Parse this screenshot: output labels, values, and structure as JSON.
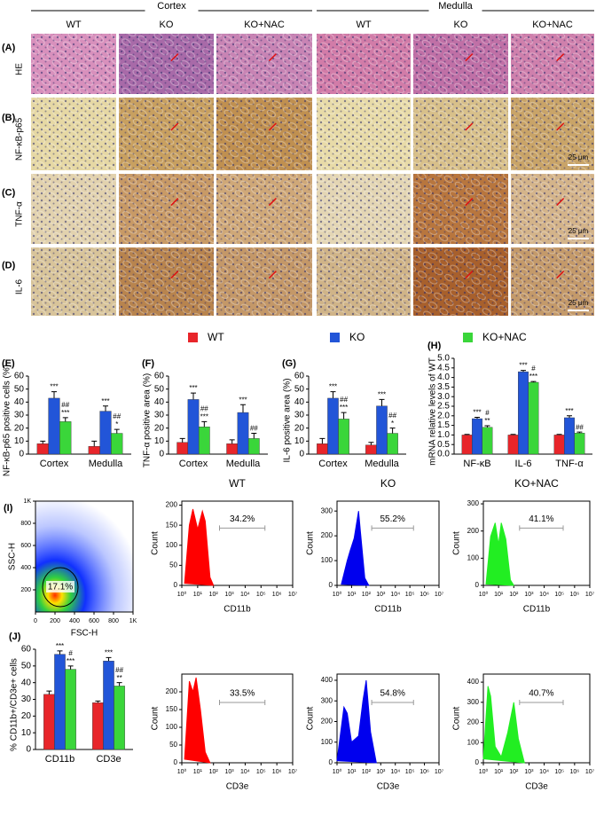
{
  "figure": {
    "groups": [
      "Cortex",
      "Medulla"
    ],
    "columns": [
      "WT",
      "KO",
      "KO+NAC"
    ],
    "rows": [
      {
        "letter": "(A)",
        "stain": "HE"
      },
      {
        "letter": "(B)",
        "stain": "NF-κB-p65"
      },
      {
        "letter": "(C)",
        "stain": "TNF-α"
      },
      {
        "letter": "(D)",
        "stain": "IL-6"
      }
    ],
    "scale_bar": "25 μm"
  },
  "chart_data": [
    {
      "type": "bar",
      "letter": "(E)",
      "ylabel": "NF-κB-p65 positive cells (%)",
      "categories": [
        "Cortex",
        "Medulla"
      ],
      "ylim": [
        0,
        60
      ],
      "yticks": [
        0,
        10,
        20,
        30,
        40,
        50,
        60
      ],
      "series": [
        {
          "name": "WT",
          "color": "#e8252a",
          "values": [
            8,
            6
          ],
          "errors": [
            2,
            4
          ]
        },
        {
          "name": "KO",
          "color": "#2255d8",
          "values": [
            43,
            33
          ],
          "errors": [
            5,
            4
          ],
          "sig": [
            [
              "***"
            ],
            [
              "***"
            ]
          ]
        },
        {
          "name": "KO+NAC",
          "color": "#3ad63a",
          "values": [
            25,
            16
          ],
          "errors": [
            3,
            3
          ],
          "sig": [
            [
              "##",
              "***"
            ],
            [
              "##",
              "*"
            ]
          ]
        }
      ]
    },
    {
      "type": "bar",
      "letter": "(F)",
      "ylabel": "TNF-α positive area (%)",
      "categories": [
        "Cortex",
        "Medulla"
      ],
      "ylim": [
        0,
        60
      ],
      "yticks": [
        0,
        10,
        20,
        30,
        40,
        50,
        60
      ],
      "series": [
        {
          "name": "WT",
          "color": "#e8252a",
          "values": [
            9,
            8
          ],
          "errors": [
            3,
            3
          ]
        },
        {
          "name": "KO",
          "color": "#2255d8",
          "values": [
            42,
            32
          ],
          "errors": [
            5,
            6
          ],
          "sig": [
            [
              "***"
            ],
            [
              "***"
            ]
          ]
        },
        {
          "name": "KO+NAC",
          "color": "#3ad63a",
          "values": [
            21,
            12
          ],
          "errors": [
            4,
            4
          ],
          "sig": [
            [
              "##",
              "***"
            ],
            [
              "##"
            ]
          ]
        }
      ]
    },
    {
      "type": "bar",
      "letter": "(G)",
      "ylabel": "IL-6 positive area (%)",
      "categories": [
        "Cortex",
        "Medulla"
      ],
      "ylim": [
        0,
        60
      ],
      "yticks": [
        0,
        10,
        20,
        30,
        40,
        50,
        60
      ],
      "series": [
        {
          "name": "WT",
          "color": "#e8252a",
          "values": [
            8,
            7
          ],
          "errors": [
            4,
            2
          ]
        },
        {
          "name": "KO",
          "color": "#2255d8",
          "values": [
            43,
            37
          ],
          "errors": [
            5,
            5
          ],
          "sig": [
            [
              "***"
            ],
            [
              "***"
            ]
          ]
        },
        {
          "name": "KO+NAC",
          "color": "#3ad63a",
          "values": [
            27,
            16
          ],
          "errors": [
            5,
            4
          ],
          "sig": [
            [
              "##",
              "***"
            ],
            [
              "##",
              "*"
            ]
          ]
        }
      ]
    },
    {
      "type": "bar",
      "letter": "(H)",
      "ylabel": "mRNA relative levels of WT",
      "categories": [
        "NF-κB",
        "IL-6",
        "TNF-α"
      ],
      "ylim": [
        0,
        5
      ],
      "yticks": [
        {
          "value": 0,
          "label": "0.0"
        },
        0.5,
        {
          "value": 1,
          "label": "1.0"
        },
        1.5,
        {
          "value": 2,
          "label": "2.0"
        },
        2.5,
        {
          "value": 3,
          "label": "3.0"
        },
        3.5,
        {
          "value": 4,
          "label": "4.0"
        },
        4.5,
        {
          "value": 5,
          "label": "5.0"
        }
      ],
      "series": [
        {
          "name": "WT",
          "color": "#e8252a",
          "values": [
            1,
            1,
            1
          ],
          "errors": [
            0.03,
            0.03,
            0.03
          ]
        },
        {
          "name": "KO",
          "color": "#2255d8",
          "values": [
            1.85,
            4.3,
            1.9
          ],
          "errors": [
            0.07,
            0.07,
            0.1
          ],
          "sig": [
            [
              "***"
            ],
            [
              "***"
            ],
            [
              "***"
            ]
          ]
        },
        {
          "name": "KO+NAC",
          "color": "#3ad63a",
          "values": [
            1.4,
            3.75,
            1.1
          ],
          "errors": [
            0.08,
            0.04,
            0.05
          ],
          "sig": [
            [
              "#",
              "**"
            ],
            [
              "#",
              "***"
            ],
            [
              "##"
            ]
          ]
        }
      ]
    },
    {
      "type": "density",
      "letter": "(I)",
      "xlabel": "FSC-H",
      "ylabel": "SSC-H",
      "label": "17.1%",
      "xlim": [
        0,
        1000
      ],
      "xticks": [
        0,
        200,
        400,
        600,
        800,
        {
          "value": 1000,
          "label": "1K"
        }
      ],
      "ylim": [
        0,
        1000
      ],
      "yticks": [
        200,
        400,
        600,
        800,
        {
          "value": 1000,
          "label": "1K"
        }
      ]
    },
    {
      "type": "area",
      "title": "WT",
      "ylabel": "Count",
      "xlabel": "CD11b",
      "label": "34.2%",
      "color": "#ff0000",
      "xlog": true,
      "xlim": [
        1,
        10000000
      ],
      "xticks": [
        {
          "value": 1,
          "label": "10⁰"
        },
        {
          "value": 10,
          "label": "10¹"
        },
        {
          "value": 100,
          "label": "10²"
        },
        {
          "value": 1000,
          "label": "10³"
        },
        {
          "value": 10000,
          "label": "10⁴"
        },
        {
          "value": 100000,
          "label": "10⁵"
        },
        {
          "value": 1000000,
          "label": "10⁶"
        },
        {
          "value": 10000000,
          "label": "10⁷"
        }
      ],
      "ylim": [
        0,
        210
      ],
      "yticks": [
        0,
        50,
        100,
        150,
        200
      ],
      "x": [
        1.5,
        3,
        5,
        10,
        20,
        30,
        60,
        100
      ],
      "values": [
        5,
        150,
        190,
        140,
        185,
        160,
        20,
        0
      ]
    },
    {
      "type": "area",
      "title": "KO",
      "ylabel": "Count",
      "xlabel": "CD11b",
      "label": "55.2%",
      "color": "#0000ee",
      "xlog": true,
      "xlim": [
        1,
        10000000
      ],
      "xticks": [
        {
          "value": 1,
          "label": "10⁰"
        },
        {
          "value": 10,
          "label": "10¹"
        },
        {
          "value": 100,
          "label": "10²"
        },
        {
          "value": 1000,
          "label": "10³"
        },
        {
          "value": 10000,
          "label": "10⁴"
        },
        {
          "value": 100000,
          "label": "10⁵"
        },
        {
          "value": 1000000,
          "label": "10⁶"
        },
        {
          "value": 10000000,
          "label": "10⁷"
        }
      ],
      "ylim": [
        0,
        340
      ],
      "yticks": [
        0,
        100,
        200,
        300
      ],
      "x": [
        2,
        5,
        8,
        15,
        30,
        40,
        80,
        150
      ],
      "values": [
        5,
        100,
        140,
        190,
        300,
        220,
        30,
        0
      ]
    },
    {
      "type": "area",
      "title": "KO+NAC",
      "ylabel": "Count",
      "xlabel": "CD11b",
      "label": "41.1%",
      "color": "#22ee22",
      "xlog": true,
      "xlim": [
        1,
        10000000
      ],
      "xticks": [
        {
          "value": 1,
          "label": "10⁰"
        },
        {
          "value": 10,
          "label": "10¹"
        },
        {
          "value": 100,
          "label": "10²"
        },
        {
          "value": 1000,
          "label": "10³"
        },
        {
          "value": 10000,
          "label": "10⁴"
        },
        {
          "value": 100000,
          "label": "10⁵"
        },
        {
          "value": 1000000,
          "label": "10⁶"
        },
        {
          "value": 10000000,
          "label": "10⁷"
        }
      ],
      "ylim": [
        0,
        310
      ],
      "yticks": [
        0,
        100,
        200,
        300
      ],
      "x": [
        1.5,
        3,
        6,
        10,
        15,
        30,
        60,
        100
      ],
      "values": [
        5,
        180,
        230,
        150,
        230,
        170,
        20,
        0
      ]
    },
    {
      "type": "bar",
      "letter": "(J)",
      "ylabel": "% CD11b+/CD3e+ cells",
      "categories": [
        "CD11b",
        "CD3e"
      ],
      "ylim": [
        0,
        60
      ],
      "yticks": [
        0,
        10,
        20,
        30,
        40,
        50,
        60
      ],
      "series": [
        {
          "name": "WT",
          "color": "#e8252a",
          "values": [
            33,
            28
          ],
          "errors": [
            2,
            1
          ]
        },
        {
          "name": "KO",
          "color": "#2255d8",
          "values": [
            57,
            53
          ],
          "errors": [
            2,
            2
          ],
          "sig": [
            [
              "***"
            ],
            [
              "***"
            ]
          ]
        },
        {
          "name": "KO+NAC",
          "color": "#3ad63a",
          "values": [
            48,
            38
          ],
          "errors": [
            2,
            2
          ],
          "sig": [
            [
              "#",
              "***"
            ],
            [
              "##",
              "**"
            ]
          ]
        }
      ]
    },
    {
      "type": "area",
      "ylabel": "Count",
      "xlabel": "CD3e",
      "label": "33.5%",
      "color": "#ff0000",
      "xlog": true,
      "xlim": [
        1,
        10000000
      ],
      "xticks": [
        {
          "value": 1,
          "label": "10⁰"
        },
        {
          "value": 10,
          "label": "10¹"
        },
        {
          "value": 100,
          "label": "10²"
        },
        {
          "value": 1000,
          "label": "10³"
        },
        {
          "value": 10000,
          "label": "10⁴"
        },
        {
          "value": 100000,
          "label": "10⁵"
        },
        {
          "value": 1000000,
          "label": "10⁶"
        },
        {
          "value": 10000000,
          "label": "10⁷"
        }
      ],
      "ylim": [
        0,
        250
      ],
      "yticks": [
        0,
        50,
        100,
        150,
        200
      ],
      "x": [
        1.5,
        3,
        5,
        8,
        15,
        30,
        60
      ],
      "values": [
        10,
        230,
        200,
        240,
        150,
        30,
        0
      ]
    },
    {
      "type": "area",
      "ylabel": "Count",
      "xlabel": "CD3e",
      "label": "54.8%",
      "color": "#0000ee",
      "xlog": true,
      "xlim": [
        1,
        10000000
      ],
      "xticks": [
        {
          "value": 1,
          "label": "10⁰"
        },
        {
          "value": 10,
          "label": "10¹"
        },
        {
          "value": 100,
          "label": "10²"
        },
        {
          "value": 1000,
          "label": "10³"
        },
        {
          "value": 10000,
          "label": "10⁴"
        },
        {
          "value": 100000,
          "label": "10⁵"
        },
        {
          "value": 1000000,
          "label": "10⁶"
        },
        {
          "value": 10000000,
          "label": "10⁷"
        }
      ],
      "ylim": [
        0,
        430
      ],
      "yticks": [
        0,
        100,
        200,
        300,
        400
      ],
      "x": [
        1,
        3,
        5,
        10,
        30,
        60,
        100,
        200,
        500
      ],
      "values": [
        10,
        270,
        240,
        100,
        130,
        300,
        400,
        150,
        0
      ]
    },
    {
      "type": "area",
      "ylabel": "Count",
      "xlabel": "CD3e",
      "label": "40.7%",
      "color": "#22ee22",
      "xlog": true,
      "xlim": [
        1,
        10000000
      ],
      "xticks": [
        {
          "value": 1,
          "label": "10⁰"
        },
        {
          "value": 10,
          "label": "10¹"
        },
        {
          "value": 100,
          "label": "10²"
        },
        {
          "value": 1000,
          "label": "10³"
        },
        {
          "value": 10000,
          "label": "10⁴"
        },
        {
          "value": 100000,
          "label": "10⁵"
        },
        {
          "value": 1000000,
          "label": "10⁶"
        },
        {
          "value": 10000000,
          "label": "10⁷"
        }
      ],
      "ylim": [
        0,
        440
      ],
      "yticks": [
        0,
        100,
        200,
        300,
        400
      ],
      "x": [
        1,
        2,
        3,
        6,
        15,
        40,
        100,
        200,
        500
      ],
      "values": [
        20,
        380,
        330,
        80,
        30,
        150,
        300,
        120,
        0
      ]
    }
  ]
}
